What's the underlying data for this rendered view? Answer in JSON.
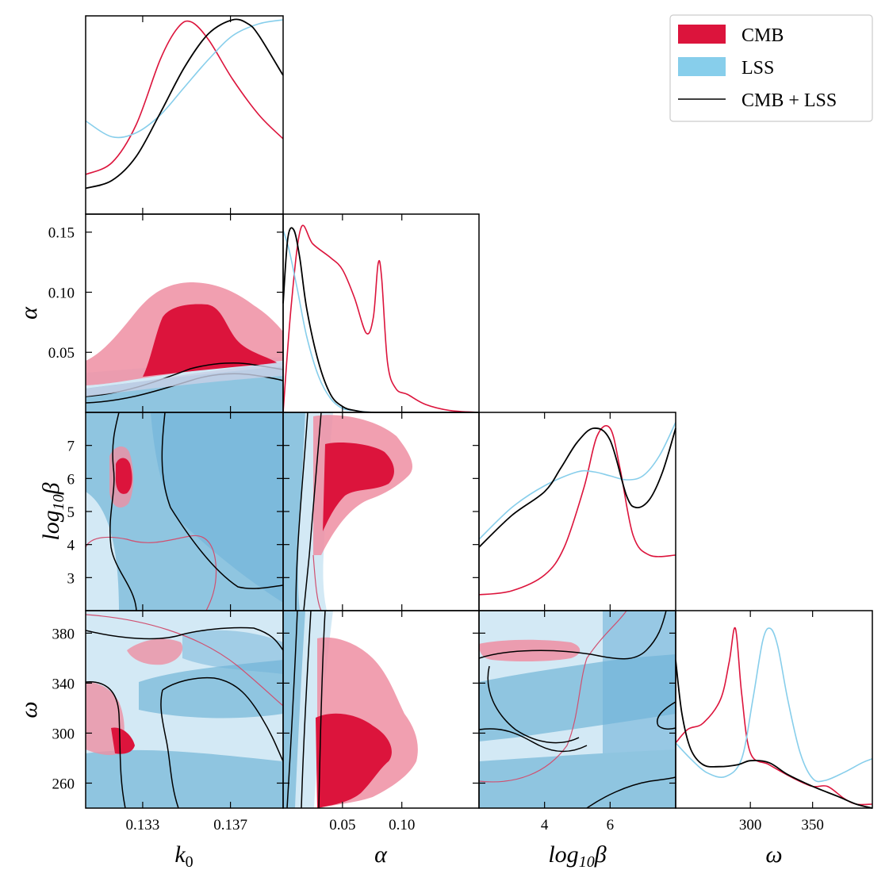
{
  "chart_data": {
    "type": "corner",
    "parameters": [
      {
        "name": "k0",
        "label_base": "k",
        "label_sub": "0",
        "range": [
          0.1304,
          0.1394
        ],
        "ticks": [
          0.133,
          0.137
        ],
        "tick_labels": [
          "0.133",
          "0.137"
        ]
      },
      {
        "name": "alpha",
        "label": "α",
        "range": [
          0.0,
          0.165
        ],
        "ticks": [
          0.05,
          0.1
        ],
        "tick_labels": [
          "0.05",
          "0.10"
        ],
        "y_ticks": [
          0.05,
          0.1,
          0.15
        ],
        "y_tick_labels": [
          "0.05",
          "0.10",
          "0.15"
        ]
      },
      {
        "name": "log10beta",
        "label_base": "log",
        "label_sub": "10",
        "label_tail": "β",
        "range": [
          2.0,
          8.0
        ],
        "ticks": [
          4,
          6
        ],
        "tick_labels": [
          "4",
          "6"
        ],
        "y_ticks": [
          3,
          4,
          5,
          6,
          7
        ],
        "y_tick_labels": [
          "3",
          "4",
          "5",
          "6",
          "7"
        ]
      },
      {
        "name": "omega",
        "label": "ω",
        "range": [
          240,
          398
        ],
        "ticks": [
          300,
          350
        ],
        "tick_labels": [
          "300",
          "350"
        ],
        "y_ticks": [
          260,
          300,
          340,
          380
        ],
        "y_tick_labels": [
          "260",
          "300",
          "340",
          "380"
        ]
      }
    ],
    "legend": [
      {
        "label": "CMB",
        "style": "patch",
        "color": "#dc143c"
      },
      {
        "label": "LSS",
        "style": "patch",
        "color": "#87ceeb"
      },
      {
        "label": "CMB + LSS",
        "style": "line",
        "color": "#000000"
      }
    ],
    "marginals": [
      {
        "param": "k0",
        "series": [
          {
            "name": "CMB",
            "color": "#dc143c",
            "x": [
              0.1304,
              0.1316,
              0.1327,
              0.1338,
              0.1346,
              0.1352,
              0.136,
              0.1371,
              0.1383,
              0.1394
            ],
            "y": [
              0.2,
              0.26,
              0.45,
              0.78,
              0.94,
              0.97,
              0.88,
              0.68,
              0.5,
              0.38
            ]
          },
          {
            "name": "LSS",
            "color": "#87ceeb",
            "x": [
              0.1304,
              0.1316,
              0.1327,
              0.1338,
              0.1349,
              0.136,
              0.1371,
              0.1383,
              0.1394
            ],
            "y": [
              0.47,
              0.39,
              0.41,
              0.5,
              0.64,
              0.78,
              0.9,
              0.96,
              0.98
            ]
          },
          {
            "name": "CMB + LSS",
            "color": "#000000",
            "x": [
              0.1304,
              0.1316,
              0.1327,
              0.1338,
              0.1349,
              0.136,
              0.1371,
              0.1378,
              0.1383,
              0.1394
            ],
            "y": [
              0.13,
              0.17,
              0.29,
              0.51,
              0.74,
              0.91,
              0.98,
              0.96,
              0.9,
              0.7
            ]
          }
        ]
      },
      {
        "param": "alpha",
        "series": [
          {
            "name": "CMB",
            "color": "#dc143c",
            "x": [
              0.0,
              0.007,
              0.015,
              0.025,
              0.04,
              0.05,
              0.06,
              0.07,
              0.076,
              0.08,
              0.083,
              0.088,
              0.095,
              0.105,
              0.12,
              0.14,
              0.165
            ],
            "y": [
              0.0,
              0.55,
              0.93,
              0.85,
              0.78,
              0.72,
              0.58,
              0.4,
              0.48,
              0.75,
              0.68,
              0.25,
              0.12,
              0.09,
              0.04,
              0.01,
              0.0
            ]
          },
          {
            "name": "LSS",
            "color": "#87ceeb",
            "x": [
              0.0,
              0.005,
              0.012,
              0.02,
              0.03,
              0.04,
              0.05,
              0.06,
              0.08,
              0.165
            ],
            "y": [
              0.92,
              0.82,
              0.62,
              0.38,
              0.18,
              0.07,
              0.02,
              0.01,
              0.0,
              0.0
            ]
          },
          {
            "name": "CMB + LSS",
            "color": "#000000",
            "x": [
              0.0,
              0.004,
              0.009,
              0.014,
              0.02,
              0.03,
              0.04,
              0.05,
              0.06,
              0.08,
              0.165
            ],
            "y": [
              0.55,
              0.88,
              0.92,
              0.78,
              0.52,
              0.25,
              0.09,
              0.03,
              0.01,
              0.0,
              0.0
            ]
          }
        ]
      },
      {
        "param": "log10beta",
        "series": [
          {
            "name": "CMB",
            "color": "#dc143c",
            "x": [
              2.0,
              3.0,
              4.0,
              4.6,
              5.2,
              5.6,
              6.0,
              6.3,
              6.7,
              7.2,
              8.0
            ],
            "y": [
              0.08,
              0.1,
              0.18,
              0.32,
              0.62,
              0.88,
              0.92,
              0.72,
              0.38,
              0.28,
              0.28
            ]
          },
          {
            "name": "LSS",
            "color": "#87ceeb",
            "x": [
              2.0,
              3.0,
              4.0,
              5.0,
              5.5,
              6.0,
              6.5,
              7.0,
              7.5,
              8.0
            ],
            "y": [
              0.36,
              0.52,
              0.63,
              0.7,
              0.7,
              0.68,
              0.66,
              0.68,
              0.78,
              0.95
            ]
          },
          {
            "name": "CMB + LSS",
            "color": "#000000",
            "x": [
              2.0,
              3.0,
              4.0,
              4.5,
              5.0,
              5.5,
              6.0,
              6.5,
              6.8,
              7.2,
              7.6,
              8.0
            ],
            "y": [
              0.32,
              0.48,
              0.6,
              0.72,
              0.85,
              0.92,
              0.86,
              0.58,
              0.52,
              0.56,
              0.7,
              0.92
            ]
          }
        ]
      },
      {
        "param": "omega",
        "series": [
          {
            "name": "CMB",
            "color": "#dc143c",
            "x": [
              240,
              250,
              262,
              276,
              283,
              288,
              293,
              300,
              315,
              335,
              350,
              362,
              375,
              385,
              398
            ],
            "y": [
              0.33,
              0.4,
              0.43,
              0.55,
              0.74,
              0.91,
              0.58,
              0.28,
              0.22,
              0.15,
              0.11,
              0.11,
              0.05,
              0.02,
              0.02
            ]
          },
          {
            "name": "LSS",
            "color": "#87ceeb",
            "x": [
              240,
              252,
              265,
              280,
              293,
              302,
              310,
              316,
              322,
              330,
              340,
              350,
              360,
              375,
              390,
              398
            ],
            "y": [
              0.33,
              0.25,
              0.18,
              0.16,
              0.25,
              0.55,
              0.85,
              0.91,
              0.82,
              0.55,
              0.28,
              0.15,
              0.14,
              0.18,
              0.23,
              0.25
            ]
          },
          {
            "name": "CMB + LSS",
            "color": "#000000",
            "x": [
              240,
              245,
              252,
              262,
              275,
              290,
              300,
              315,
              330,
              350,
              370,
              385,
              398
            ],
            "y": [
              0.75,
              0.48,
              0.3,
              0.22,
              0.21,
              0.22,
              0.24,
              0.23,
              0.17,
              0.11,
              0.06,
              0.02,
              0.0
            ]
          }
        ]
      }
    ]
  }
}
